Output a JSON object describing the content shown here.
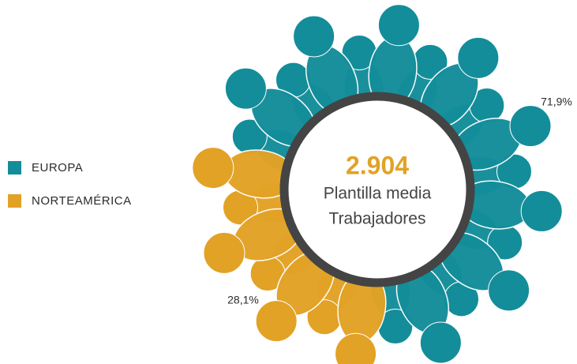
{
  "chart_data": {
    "type": "pie",
    "title": "2.904",
    "subtitle": [
      "Plantilla media",
      "Trabajadores"
    ],
    "categories": [
      "EUROPA",
      "NORTEAMÉRICA"
    ],
    "values": [
      71.9,
      28.1
    ],
    "value_labels": [
      "71,9%",
      "28,1%"
    ],
    "colors": [
      "#138d9a",
      "#e2a225"
    ]
  }
}
